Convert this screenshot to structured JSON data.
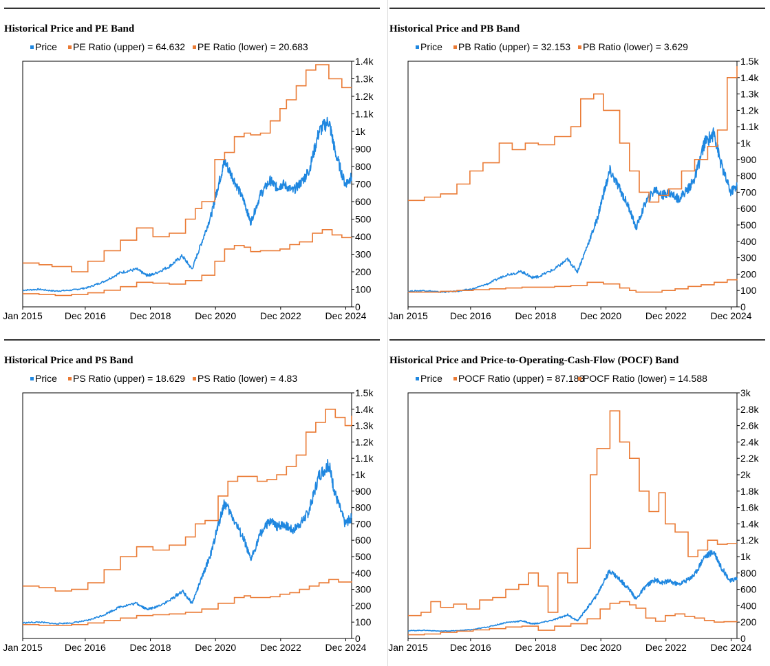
{
  "colors": {
    "price": "#1f87e0",
    "band": "#ea7a34",
    "axis": "#000000",
    "rule": "#333333"
  },
  "xaxis": {
    "ticks": [
      "Jan 2015",
      "Dec 2016",
      "Dec 2018",
      "Dec 2020",
      "Dec 2022",
      "Dec 2024"
    ]
  },
  "chart_data": [
    {
      "type": "line",
      "title": "Historical Price and PE Band",
      "legend": [
        "Price",
        "PE Ratio (upper) = 64.632",
        "PE Ratio (lower) = 20.683"
      ],
      "ylim": [
        0,
        1400
      ],
      "yticks": [
        "0",
        "100",
        "200",
        "300",
        "400",
        "500",
        "600",
        "700",
        "800",
        "900",
        "1k",
        "1.1k",
        "1.2k",
        "1.3k",
        "1.4k"
      ],
      "series": [
        {
          "name": "Price",
          "x": [
            2015.0,
            2015.5,
            2016.0,
            2016.5,
            2017.0,
            2017.5,
            2018.0,
            2018.5,
            2018.8,
            2019.0,
            2019.5,
            2019.9,
            2020.2,
            2020.5,
            2020.8,
            2021.0,
            2021.2,
            2021.5,
            2021.8,
            2022.0,
            2022.3,
            2022.6,
            2022.8,
            2023.0,
            2023.3,
            2023.6,
            2023.8,
            2024.1,
            2024.4,
            2024.6,
            2024.9,
            2025.1
          ],
          "values": [
            95,
            100,
            90,
            95,
            110,
            145,
            195,
            215,
            180,
            185,
            230,
            290,
            215,
            370,
            530,
            690,
            830,
            720,
            600,
            480,
            640,
            720,
            680,
            700,
            660,
            720,
            780,
            1000,
            1060,
            880,
            700,
            740
          ]
        },
        {
          "name": "PE Ratio (upper)",
          "x": [
            2015.0,
            2015.5,
            2015.9,
            2016.5,
            2017.0,
            2017.5,
            2018.0,
            2018.5,
            2019.0,
            2019.5,
            2020.0,
            2020.3,
            2020.5,
            2020.9,
            2021.2,
            2021.5,
            2021.8,
            2022.0,
            2022.3,
            2022.6,
            2022.9,
            2023.1,
            2023.4,
            2023.7,
            2024.0,
            2024.4,
            2024.8,
            2025.1
          ],
          "values": [
            250,
            240,
            230,
            200,
            260,
            320,
            380,
            450,
            400,
            420,
            500,
            560,
            600,
            840,
            880,
            970,
            990,
            980,
            990,
            1060,
            1130,
            1180,
            1260,
            1350,
            1380,
            1300,
            1250,
            1250
          ]
        },
        {
          "name": "PE Ratio (lower)",
          "x": [
            2015.0,
            2015.5,
            2016.0,
            2016.5,
            2017.0,
            2017.5,
            2018.0,
            2018.5,
            2019.0,
            2019.5,
            2020.0,
            2020.5,
            2020.9,
            2021.2,
            2021.5,
            2021.8,
            2022.0,
            2022.3,
            2022.6,
            2022.9,
            2023.2,
            2023.5,
            2023.9,
            2024.2,
            2024.5,
            2024.8,
            2025.1
          ],
          "values": [
            75,
            70,
            65,
            70,
            80,
            95,
            115,
            140,
            135,
            130,
            150,
            180,
            260,
            330,
            350,
            340,
            315,
            320,
            320,
            330,
            355,
            370,
            420,
            440,
            410,
            395,
            395
          ]
        }
      ]
    },
    {
      "type": "line",
      "title": "Historical Price and PB Band",
      "legend": [
        "Price",
        "PB Ratio (upper) = 32.153",
        "PB Ratio (lower) = 3.629"
      ],
      "ylim": [
        0,
        1500
      ],
      "yticks": [
        "0",
        "100",
        "200",
        "300",
        "400",
        "500",
        "600",
        "700",
        "800",
        "900",
        "1k",
        "1.1k",
        "1.2k",
        "1.3k",
        "1.4k",
        "1.5k"
      ],
      "series": [
        {
          "name": "Price",
          "x": [
            2015.0,
            2015.5,
            2016.0,
            2016.5,
            2017.0,
            2017.5,
            2018.0,
            2018.5,
            2018.8,
            2019.0,
            2019.5,
            2019.9,
            2020.2,
            2020.5,
            2020.8,
            2021.0,
            2021.2,
            2021.5,
            2021.8,
            2022.0,
            2022.3,
            2022.6,
            2022.8,
            2023.0,
            2023.3,
            2023.6,
            2023.8,
            2024.1,
            2024.4,
            2024.6,
            2024.9,
            2025.1
          ],
          "values": [
            95,
            100,
            90,
            95,
            110,
            145,
            195,
            215,
            180,
            185,
            230,
            290,
            215,
            370,
            530,
            690,
            830,
            720,
            600,
            480,
            640,
            720,
            680,
            700,
            660,
            720,
            780,
            1000,
            1060,
            880,
            700,
            740
          ]
        },
        {
          "name": "PB Ratio (upper)",
          "x": [
            2015.0,
            2015.5,
            2016.0,
            2016.5,
            2016.9,
            2017.3,
            2017.8,
            2018.2,
            2018.6,
            2019.0,
            2019.5,
            2020.0,
            2020.3,
            2020.7,
            2021.0,
            2021.5,
            2021.8,
            2022.1,
            2022.4,
            2022.7,
            2023.0,
            2023.4,
            2023.8,
            2024.2,
            2024.5,
            2024.8,
            2025.1
          ],
          "values": [
            650,
            670,
            690,
            750,
            830,
            880,
            1000,
            960,
            1000,
            990,
            1040,
            1100,
            1270,
            1300,
            1200,
            1000,
            830,
            700,
            640,
            680,
            720,
            830,
            900,
            980,
            1080,
            1400,
            1470
          ]
        },
        {
          "name": "PB Ratio (lower)",
          "x": [
            2015.0,
            2015.5,
            2016.0,
            2016.5,
            2017.0,
            2017.5,
            2018.0,
            2018.5,
            2019.0,
            2019.5,
            2020.0,
            2020.5,
            2021.0,
            2021.5,
            2021.8,
            2022.0,
            2022.4,
            2022.8,
            2023.2,
            2023.6,
            2024.0,
            2024.4,
            2024.8,
            2025.1
          ],
          "values": [
            90,
            90,
            95,
            100,
            105,
            110,
            115,
            120,
            120,
            125,
            130,
            150,
            140,
            115,
            100,
            90,
            90,
            100,
            110,
            125,
            135,
            150,
            165,
            170
          ]
        }
      ]
    },
    {
      "type": "line",
      "title": "Historical Price and PS Band",
      "legend": [
        "Price",
        "PS Ratio (upper) = 18.629",
        "PS Ratio (lower) = 4.83"
      ],
      "ylim": [
        0,
        1500
      ],
      "yticks": [
        "0",
        "100",
        "200",
        "300",
        "400",
        "500",
        "600",
        "700",
        "800",
        "900",
        "1k",
        "1.1k",
        "1.2k",
        "1.3k",
        "1.4k",
        "1.5k"
      ],
      "series": [
        {
          "name": "Price",
          "x": [
            2015.0,
            2015.5,
            2016.0,
            2016.5,
            2017.0,
            2017.5,
            2018.0,
            2018.5,
            2018.8,
            2019.0,
            2019.5,
            2019.9,
            2020.2,
            2020.5,
            2020.8,
            2021.0,
            2021.2,
            2021.5,
            2021.8,
            2022.0,
            2022.3,
            2022.6,
            2022.8,
            2023.0,
            2023.3,
            2023.6,
            2023.8,
            2024.1,
            2024.4,
            2024.6,
            2024.9,
            2025.1
          ],
          "values": [
            95,
            100,
            90,
            95,
            110,
            145,
            195,
            215,
            180,
            185,
            230,
            290,
            215,
            370,
            530,
            690,
            830,
            720,
            600,
            480,
            640,
            720,
            680,
            700,
            660,
            720,
            780,
            1000,
            1060,
            880,
            700,
            740
          ]
        },
        {
          "name": "PS Ratio (upper)",
          "x": [
            2015.0,
            2015.5,
            2016.0,
            2016.5,
            2017.0,
            2017.5,
            2018.0,
            2018.5,
            2019.0,
            2019.5,
            2020.0,
            2020.3,
            2020.6,
            2021.0,
            2021.3,
            2021.6,
            2021.9,
            2022.2,
            2022.5,
            2022.8,
            2023.1,
            2023.4,
            2023.7,
            2024.0,
            2024.3,
            2024.6,
            2024.9,
            2025.1
          ],
          "values": [
            320,
            310,
            290,
            300,
            340,
            420,
            500,
            560,
            540,
            570,
            620,
            700,
            720,
            870,
            960,
            990,
            990,
            960,
            970,
            1000,
            1050,
            1120,
            1260,
            1320,
            1400,
            1350,
            1300,
            1360
          ]
        },
        {
          "name": "PS Ratio (lower)",
          "x": [
            2015.0,
            2015.5,
            2016.0,
            2016.5,
            2017.0,
            2017.5,
            2018.0,
            2018.5,
            2019.0,
            2019.5,
            2020.0,
            2020.5,
            2021.0,
            2021.5,
            2021.8,
            2022.0,
            2022.3,
            2022.6,
            2022.9,
            2023.2,
            2023.5,
            2023.8,
            2024.1,
            2024.4,
            2024.7,
            2025.1
          ],
          "values": [
            85,
            80,
            80,
            85,
            95,
            110,
            125,
            140,
            145,
            150,
            160,
            180,
            215,
            250,
            260,
            250,
            250,
            255,
            270,
            280,
            300,
            320,
            340,
            360,
            345,
            350
          ]
        }
      ]
    },
    {
      "type": "line",
      "title": "Historical Price and Price-to-Operating-Cash-Flow (POCF) Band",
      "legend": [
        "Price",
        "POCF Ratio (upper) = 87.183",
        "POCF Ratio (lower) = 14.588"
      ],
      "ylim": [
        0,
        3000
      ],
      "yticks": [
        "0",
        "200",
        "400",
        "600",
        "800",
        "1k",
        "1.2k",
        "1.4k",
        "1.6k",
        "1.8k",
        "2k",
        "2.2k",
        "2.4k",
        "2.6k",
        "2.8k",
        "3k"
      ],
      "series": [
        {
          "name": "Price",
          "x": [
            2015.0,
            2015.5,
            2016.0,
            2016.5,
            2017.0,
            2017.5,
            2018.0,
            2018.5,
            2018.8,
            2019.0,
            2019.5,
            2019.9,
            2020.2,
            2020.5,
            2020.8,
            2021.0,
            2021.2,
            2021.5,
            2021.8,
            2022.0,
            2022.3,
            2022.6,
            2022.8,
            2023.0,
            2023.3,
            2023.6,
            2023.8,
            2024.1,
            2024.4,
            2024.6,
            2024.9,
            2025.1
          ],
          "values": [
            95,
            100,
            90,
            95,
            110,
            145,
            195,
            215,
            180,
            185,
            230,
            290,
            215,
            370,
            530,
            690,
            830,
            720,
            600,
            480,
            640,
            720,
            680,
            700,
            660,
            720,
            780,
            1000,
            1060,
            880,
            700,
            740
          ]
        },
        {
          "name": "POCF Ratio (upper)",
          "x": [
            2015.0,
            2015.4,
            2015.7,
            2016.0,
            2016.4,
            2016.8,
            2017.2,
            2017.6,
            2018.0,
            2018.4,
            2018.7,
            2019.0,
            2019.3,
            2019.6,
            2019.9,
            2020.2,
            2020.6,
            2020.8,
            2021.2,
            2021.5,
            2021.8,
            2022.1,
            2022.4,
            2022.7,
            2022.9,
            2023.2,
            2023.6,
            2023.9,
            2024.2,
            2024.5,
            2024.8,
            2025.1
          ],
          "values": [
            280,
            320,
            450,
            380,
            420,
            360,
            470,
            500,
            600,
            660,
            800,
            640,
            320,
            800,
            680,
            1100,
            2000,
            2320,
            2780,
            2400,
            2200,
            1800,
            1550,
            1780,
            1400,
            1300,
            1000,
            1080,
            1200,
            1150,
            1160,
            1160
          ]
        },
        {
          "name": "POCF Ratio (lower)",
          "x": [
            2015.0,
            2015.5,
            2016.0,
            2016.5,
            2017.0,
            2017.5,
            2018.0,
            2018.5,
            2019.0,
            2019.5,
            2020.0,
            2020.5,
            2020.9,
            2021.2,
            2021.5,
            2021.8,
            2022.0,
            2022.3,
            2022.6,
            2022.9,
            2023.2,
            2023.5,
            2023.8,
            2024.1,
            2024.4,
            2024.7,
            2025.1
          ],
          "values": [
            45,
            55,
            75,
            90,
            105,
            120,
            140,
            150,
            100,
            150,
            180,
            240,
            360,
            430,
            450,
            410,
            370,
            250,
            210,
            280,
            300,
            270,
            250,
            220,
            200,
            205,
            200
          ]
        }
      ]
    }
  ]
}
